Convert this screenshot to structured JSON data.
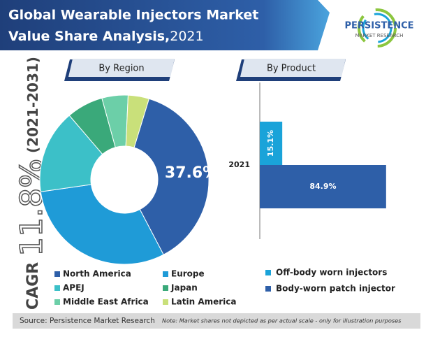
{
  "header": {
    "title_line1": "Global Wearable Injectors Market",
    "title_line2": "Value Share Analysis,",
    "year": "2021"
  },
  "logo": {
    "name": "PERSISTENCE",
    "tagline": "MARKET RESEARCH"
  },
  "cagr": {
    "label": "CAGR",
    "value": "11.8%",
    "period": "(2021-2031)"
  },
  "footer": {
    "source": "Source: Persistence Market Research",
    "note": "Note: Market shares not depicted as per actual scale - only for illustration purposes"
  },
  "chart_data": [
    {
      "type": "pie",
      "title": "By Region",
      "categories": [
        "North America",
        "Europe",
        "APEJ",
        "Japan",
        "Middle East Africa",
        "Latin America"
      ],
      "values": [
        37.6,
        30.4,
        16,
        7,
        5,
        4
      ],
      "value_labels": [
        "37.6%",
        null,
        null,
        null,
        null,
        null
      ],
      "colors": [
        "#2e5fa8",
        "#1f9bd7",
        "#3cc0c8",
        "#3aa97a",
        "#6ccfa8",
        "#c9e07a"
      ]
    },
    {
      "type": "bar",
      "title": "By Product",
      "orientation": "horizontal",
      "categories": [
        "2021"
      ],
      "xlim": [
        0,
        100
      ],
      "series": [
        {
          "name": "Off-body worn injectors",
          "color": "#1aa3d9",
          "values": [
            15.1
          ],
          "value_labels": [
            "15.1%"
          ]
        },
        {
          "name": "Body-worn patch injector",
          "color": "#2e5fa8",
          "values": [
            84.9
          ],
          "value_labels": [
            "84.9%"
          ]
        }
      ]
    }
  ]
}
